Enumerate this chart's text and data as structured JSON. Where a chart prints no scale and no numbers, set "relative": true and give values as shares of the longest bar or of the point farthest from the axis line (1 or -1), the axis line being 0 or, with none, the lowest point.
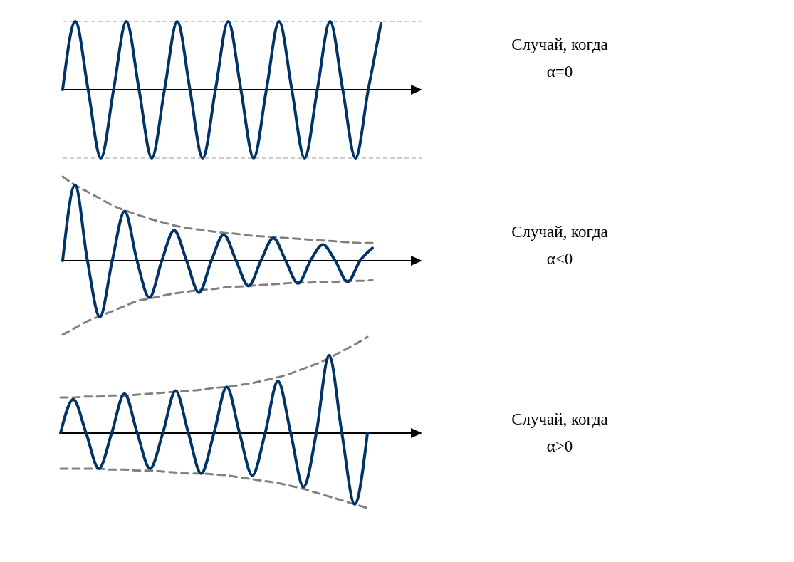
{
  "chart_data": [
    {
      "type": "line",
      "relative": true,
      "categories": [
        null,
        null,
        null,
        null,
        null,
        null,
        null,
        null,
        null,
        null,
        null,
        null,
        null,
        null,
        null,
        null,
        null,
        null,
        null,
        null,
        null,
        null,
        null,
        null,
        null,
        null
      ],
      "series": [
        {
          "color": "#003366",
          "line_style": "solid",
          "values": [
            0,
            1,
            0,
            -1,
            0,
            1,
            0,
            -1,
            0,
            1,
            0,
            -1,
            0,
            1,
            0,
            -1,
            0,
            1,
            0,
            -1,
            0,
            1,
            0,
            -1,
            0,
            0.97
          ]
        }
      ],
      "ref_lines": [
        {
          "axis": "y",
          "value": 1,
          "color": "#999999",
          "line_style": "dashed"
        },
        {
          "axis": "y",
          "value": -1,
          "color": "#999999",
          "line_style": "dashed"
        }
      ],
      "annotations": [
        "Случай, когда",
        "α=0"
      ]
    },
    {
      "type": "line",
      "relative": true,
      "categories": [
        null,
        null,
        null,
        null,
        null,
        null,
        null,
        null,
        null,
        null,
        null,
        null,
        null,
        null,
        null,
        null,
        null,
        null,
        null,
        null,
        null,
        null,
        null,
        null,
        null,
        null
      ],
      "series": [
        {
          "color": "#808080",
          "line_style": "dashed",
          "values": [
            1,
            0.9,
            0.82,
            0.74,
            0.66,
            0.6,
            0.55,
            0.5,
            0.46,
            0.42,
            0.39,
            0.37,
            0.35,
            0.33,
            0.32,
            0.3,
            0.29,
            0.28,
            0.27,
            0.26,
            0.25,
            0.24,
            0.23,
            0.22,
            0.21,
            0.21
          ]
        },
        {
          "color": "#808080",
          "line_style": "dashed",
          "values": [
            -0.88,
            -0.8,
            -0.72,
            -0.66,
            -0.6,
            -0.54,
            -0.48,
            -0.45,
            -0.42,
            -0.39,
            -0.37,
            -0.35,
            -0.34,
            -0.32,
            -0.31,
            -0.3,
            -0.29,
            -0.28,
            -0.27,
            -0.26,
            -0.26,
            -0.25,
            -0.25,
            -0.24,
            -0.24,
            -0.23
          ]
        },
        {
          "color": "#003366",
          "line_style": "solid",
          "values": [
            0,
            0.9,
            0,
            -0.67,
            0,
            0.59,
            0,
            -0.44,
            0,
            0.36,
            0,
            -0.38,
            0,
            0.31,
            0,
            -0.3,
            0,
            0.27,
            0,
            -0.27,
            0,
            0.19,
            0,
            -0.25,
            0,
            0.15
          ]
        }
      ],
      "annotations": [
        "Случай, когда",
        "α<0"
      ]
    },
    {
      "type": "line",
      "relative": true,
      "categories": [
        null,
        null,
        null,
        null,
        null,
        null,
        null,
        null,
        null,
        null,
        null,
        null,
        null,
        null,
        null,
        null,
        null,
        null,
        null,
        null,
        null,
        null,
        null,
        null,
        null
      ],
      "series": [
        {
          "color": "#808080",
          "line_style": "dashed",
          "values": [
            0.37,
            0.37,
            0.38,
            0.38,
            0.39,
            0.39,
            0.4,
            0.41,
            0.42,
            0.43,
            0.44,
            0.45,
            0.47,
            0.48,
            0.5,
            0.52,
            0.55,
            0.58,
            0.62,
            0.67,
            0.72,
            0.78,
            0.85,
            0.92,
            1
          ]
        },
        {
          "color": "#808080",
          "line_style": "dashed",
          "values": [
            -0.37,
            -0.37,
            -0.37,
            -0.37,
            -0.38,
            -0.38,
            -0.39,
            -0.39,
            -0.4,
            -0.41,
            -0.42,
            -0.42,
            -0.43,
            -0.44,
            -0.46,
            -0.48,
            -0.5,
            -0.52,
            -0.55,
            -0.58,
            -0.62,
            -0.66,
            -0.7,
            -0.74,
            -0.78
          ]
        },
        {
          "color": "#003366",
          "line_style": "solid",
          "values": [
            0,
            0.35,
            0,
            -0.37,
            0,
            0.41,
            0,
            -0.37,
            0,
            0.44,
            0,
            -0.42,
            0,
            0.48,
            0,
            -0.44,
            0,
            0.54,
            0,
            -0.56,
            0,
            0.81,
            0,
            -0.74,
            0
          ]
        }
      ],
      "annotations": [
        "Случай, когда",
        "α>0"
      ]
    }
  ]
}
